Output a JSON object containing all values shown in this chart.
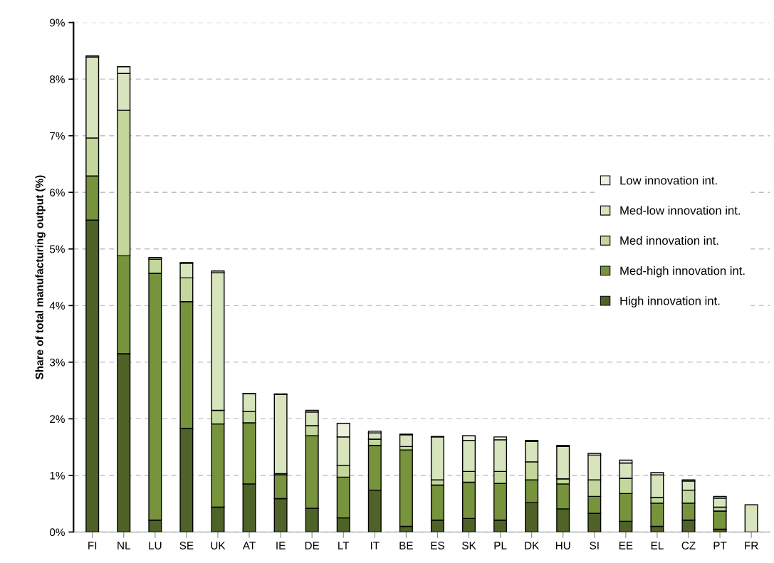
{
  "chart_data": {
    "type": "bar",
    "stacked": true,
    "ylabel": "Share of total manufacturing output (%)",
    "categories": [
      "FI",
      "NL",
      "LU",
      "SE",
      "UK",
      "AT",
      "IE",
      "DE",
      "LT",
      "IT",
      "BE",
      "ES",
      "SK",
      "PL",
      "DK",
      "HU",
      "SI",
      "EE",
      "EL",
      "CZ",
      "PT",
      "FR"
    ],
    "series": [
      {
        "name": "High innovation int.",
        "color": "#4f6228",
        "values": [
          5.51,
          3.15,
          0.21,
          1.83,
          0.44,
          0.85,
          0.59,
          0.42,
          0.25,
          0.74,
          0.1,
          0.21,
          0.24,
          0.21,
          0.52,
          0.41,
          0.33,
          0.19,
          0.1,
          0.21,
          0.05,
          0
        ]
      },
      {
        "name": "Med-high innovation int.",
        "color": "#77933c",
        "values": [
          0.78,
          1.73,
          4.36,
          2.24,
          1.47,
          1.08,
          0.42,
          1.28,
          0.72,
          0.79,
          1.35,
          0.62,
          0.64,
          0.65,
          0.4,
          0.44,
          0.3,
          0.49,
          0.41,
          0.3,
          0.32,
          0
        ]
      },
      {
        "name": "Med innovation int.",
        "color": "#c3d69b",
        "values": [
          0.67,
          2.57,
          0.25,
          0.42,
          0.24,
          0.2,
          0.02,
          0.18,
          0.21,
          0.11,
          0.06,
          0.09,
          0.19,
          0.21,
          0.32,
          0.09,
          0.29,
          0.27,
          0.1,
          0.23,
          0.07,
          0
        ]
      },
      {
        "name": "Med-low innovation int.",
        "color": "#d7e4bd",
        "values": [
          1.43,
          0.65,
          0.03,
          0.26,
          2.43,
          0.31,
          1.4,
          0.24,
          0.5,
          0.11,
          0.21,
          0.76,
          0.55,
          0.56,
          0.36,
          0.57,
          0.44,
          0.27,
          0.4,
          0.16,
          0.16,
          0.48
        ]
      },
      {
        "name": "Low innovation int.",
        "color": "#ebf1de",
        "values": [
          0.02,
          0.12,
          0.0,
          0.01,
          0.03,
          0.01,
          0.01,
          0.03,
          0.24,
          0.03,
          0.01,
          0.01,
          0.08,
          0.05,
          0.02,
          0.02,
          0.03,
          0.05,
          0.04,
          0.02,
          0.03,
          0
        ]
      }
    ],
    "ylim": [
      0,
      9
    ],
    "yticks": [
      {
        "value": 0,
        "label": "0%"
      },
      {
        "value": 1,
        "label": "1%"
      },
      {
        "value": 2,
        "label": "2%"
      },
      {
        "value": 3,
        "label": "3%"
      },
      {
        "value": 4,
        "label": "4%"
      },
      {
        "value": 5,
        "label": "5%"
      },
      {
        "value": 6,
        "label": "6%"
      },
      {
        "value": 7,
        "label": "7%"
      },
      {
        "value": 8,
        "label": "8%"
      },
      {
        "value": 9,
        "label": "9%"
      }
    ],
    "grid": "y",
    "legend": "right"
  }
}
